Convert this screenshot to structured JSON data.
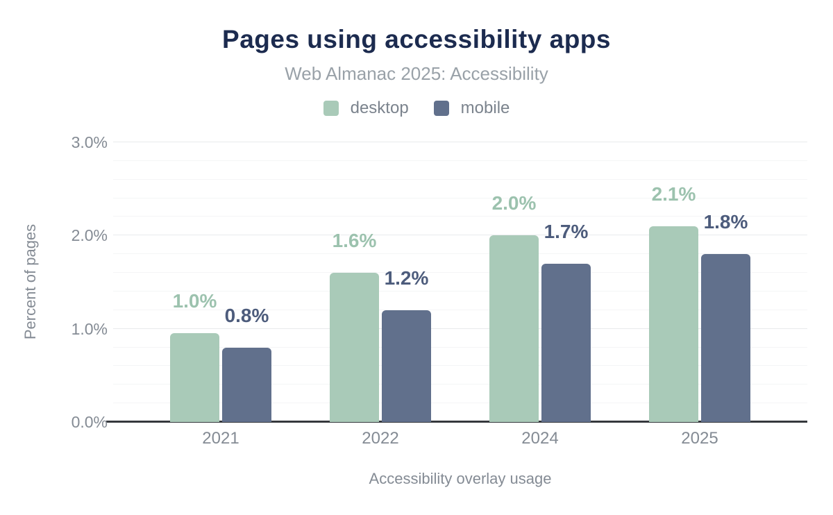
{
  "header": {
    "title": "Pages using accessibility apps",
    "subtitle": "Web Almanac 2025: Accessibility"
  },
  "legend": [
    {
      "label": "desktop",
      "color": "#a9cab8"
    },
    {
      "label": "mobile",
      "color": "#61708c"
    }
  ],
  "chart_data": {
    "type": "bar",
    "title": "Pages using accessibility apps",
    "subtitle": "Web Almanac 2025: Accessibility",
    "categories": [
      "2021",
      "2022",
      "2024",
      "2025"
    ],
    "series": [
      {
        "name": "desktop",
        "color": "#a9cab8",
        "label_color": "#9cc2ae",
        "values": [
          0.95,
          1.6,
          2.0,
          2.1
        ],
        "labels": [
          "1.0%",
          "1.6%",
          "2.0%",
          "2.1%"
        ]
      },
      {
        "name": "mobile",
        "color": "#61708c",
        "label_color": "#4d5c7c",
        "values": [
          0.8,
          1.2,
          1.7,
          1.8
        ],
        "labels": [
          "0.8%",
          "1.2%",
          "1.7%",
          "1.8%"
        ]
      }
    ],
    "xlabel": "Accessibility overlay usage",
    "ylabel": "Percent of pages",
    "ylim": [
      0,
      3
    ],
    "yticks": [
      {
        "value": 0,
        "label": "0.0%"
      },
      {
        "value": 1,
        "label": "1.0%"
      },
      {
        "value": 2,
        "label": "2.0%"
      },
      {
        "value": 3,
        "label": "3.0%"
      }
    ],
    "grid": {
      "major_step": 1.0,
      "minor_step": 0.2,
      "legend_position": "top"
    }
  }
}
